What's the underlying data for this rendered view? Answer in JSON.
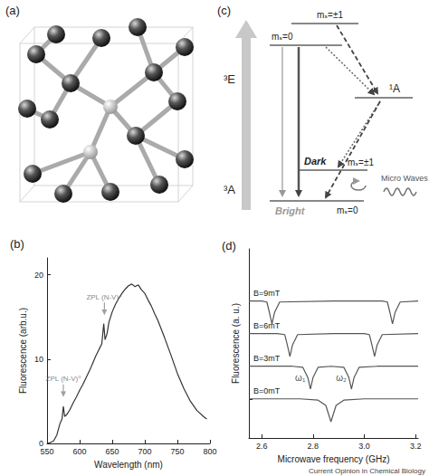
{
  "panels": {
    "a": {
      "label": "(a)"
    },
    "c": {
      "label": "(c)",
      "excited": "³E",
      "singlet": "¹A",
      "ground": "³A",
      "excited_plus_minus": "mₛ=±1",
      "excited_zero": "mₛ=0",
      "ground_plus_minus": "mₛ=±1",
      "ground_zero": "mₛ=0",
      "dark": "Dark",
      "bright": "Bright",
      "microwaves": "Micro Waves"
    }
  },
  "caption": "Current Opinion in Chemical Biology",
  "chart_data": [
    {
      "type": "line",
      "title": "(b)",
      "x_label": "Wavelength (nm)",
      "y_label": "Fluorescence (arb.u.)",
      "xlim": [
        550,
        800
      ],
      "xticks": [
        550,
        600,
        650,
        700,
        750,
        800
      ],
      "ylim": [
        0,
        22
      ],
      "yticks": [
        0,
        10,
        20
      ],
      "grid": false,
      "series": [
        {
          "color": "#333333",
          "x": [
            550,
            555,
            560,
            565,
            570,
            573,
            575,
            577,
            580,
            585,
            590,
            595,
            600,
            605,
            610,
            615,
            620,
            625,
            630,
            634,
            637,
            639,
            642,
            645,
            650,
            655,
            660,
            665,
            670,
            675,
            680,
            685,
            690,
            695,
            700,
            705,
            710,
            715,
            720,
            725,
            730,
            740,
            750,
            760,
            770,
            780,
            790,
            795
          ],
          "values": [
            0,
            0.1,
            0.3,
            1.0,
            2.4,
            2.9,
            4.4,
            3.2,
            3.4,
            4.0,
            4.8,
            5.5,
            6.3,
            7.0,
            7.8,
            8.6,
            9.5,
            10.4,
            11.2,
            11.8,
            14.2,
            12.3,
            13.0,
            14.4,
            15.6,
            16.5,
            17.2,
            17.8,
            18.3,
            18.7,
            18.9,
            18.6,
            18.8,
            18.2,
            17.8,
            17.0,
            16.3,
            15.4,
            14.6,
            13.6,
            12.6,
            10.5,
            8.3,
            6.5,
            5.0,
            3.9,
            3.2,
            2.9
          ]
        }
      ],
      "annotations": [
        {
          "text": "ZPL (N-V)⁰",
          "x": 575,
          "y": 5.5
        },
        {
          "text": "ZPL (N-V)⁻",
          "x": 638,
          "y": 15.2
        }
      ]
    },
    {
      "type": "line",
      "title": "(d)",
      "x_label": "Microwave frequency (GHz)",
      "y_label": "Fluorescence (a. u.)",
      "xlim": [
        2.55,
        3.21
      ],
      "xticks": [
        2.6,
        2.8,
        {
          "value": 3,
          "label": "3.0"
        },
        3.2
      ],
      "ylim": [
        -1.2,
        4.6
      ],
      "yticks": [
        0,
        1,
        2,
        3
      ],
      "tick_labels": "x",
      "grid": false,
      "series": [
        {
          "name": "B=9mT",
          "color": "#555555",
          "x": [
            2.55,
            2.6,
            2.62,
            2.63,
            2.64,
            2.65,
            2.67,
            2.88,
            3.07,
            3.09,
            3.1,
            3.11,
            3.12,
            3.14,
            3.21
          ],
          "values": [
            3,
            3,
            2.97,
            2.65,
            2.3,
            2.65,
            2.97,
            3,
            3,
            2.97,
            2.65,
            2.3,
            2.65,
            2.97,
            3
          ]
        },
        {
          "name": "B=6mT",
          "color": "#555555",
          "x": [
            2.55,
            2.66,
            2.69,
            2.7,
            2.71,
            2.72,
            2.74,
            2.88,
            3.0,
            3.02,
            3.03,
            3.04,
            3.05,
            3.07,
            3.21
          ],
          "values": [
            2,
            2,
            1.97,
            1.65,
            1.3,
            1.65,
            1.97,
            2,
            2,
            1.97,
            1.65,
            1.3,
            1.65,
            1.97,
            2
          ]
        },
        {
          "name": "B=3mT",
          "color": "#555555",
          "x": [
            2.55,
            2.72,
            2.76,
            2.78,
            2.79,
            2.8,
            2.82,
            2.87,
            2.92,
            2.94,
            2.95,
            2.96,
            2.98,
            3.05,
            3.21
          ],
          "values": [
            1,
            1,
            0.97,
            0.65,
            0.3,
            0.65,
            0.97,
            1,
            0.97,
            0.65,
            0.3,
            0.65,
            0.97,
            1,
            1
          ]
        },
        {
          "name": "B=0mT",
          "color": "#555555",
          "x": [
            2.55,
            2.75,
            2.82,
            2.85,
            2.86,
            2.87,
            2.88,
            2.89,
            2.92,
            3.0,
            3.21
          ],
          "values": [
            0,
            0,
            -0.04,
            -0.2,
            -0.45,
            -0.7,
            -0.45,
            -0.2,
            -0.04,
            0,
            0
          ]
        }
      ],
      "annotations": [
        {
          "text": "ω₁",
          "x": 2.75,
          "y": 0.45
        },
        {
          "text": "ω₂",
          "x": 2.91,
          "y": 0.45
        }
      ]
    }
  ]
}
